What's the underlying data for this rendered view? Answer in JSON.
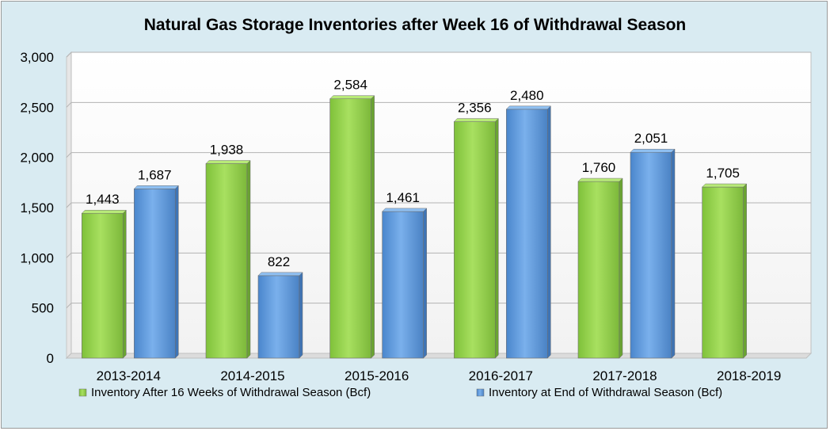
{
  "chart_data": {
    "type": "bar",
    "title": "Natural Gas Storage Inventories after Week 16 of Withdrawal Season",
    "xlabel": "",
    "ylabel": "",
    "ylim": [
      0,
      3000
    ],
    "yticks": [
      "0",
      "500",
      "1,000",
      "1,500",
      "2,000",
      "2,500",
      "3,000"
    ],
    "ytick_values": [
      0,
      500,
      1000,
      1500,
      2000,
      2500,
      3000
    ],
    "categories": [
      "2013-2014",
      "2014-2015",
      "2015-2016",
      "2016-2017",
      "2017-2018",
      "2018-2019"
    ],
    "series": [
      {
        "name": "Inventory After 16 Weeks of Withdrawal Season (Bcf)",
        "color": "#92d050",
        "values": [
          1443,
          1938,
          2584,
          2356,
          1760,
          1705
        ],
        "labels": [
          "1,443",
          "1,938",
          "2,584",
          "2,356",
          "1,760",
          "1,705"
        ]
      },
      {
        "name": "Inventory at End of Withdrawal Season (Bcf)",
        "color": "#5b9bd5",
        "values": [
          1687,
          822,
          1461,
          2480,
          2051,
          null
        ],
        "labels": [
          "1,687",
          "822",
          "1,461",
          "2,480",
          "2,051",
          null
        ]
      }
    ],
    "grid": true,
    "legend_position": "bottom"
  }
}
